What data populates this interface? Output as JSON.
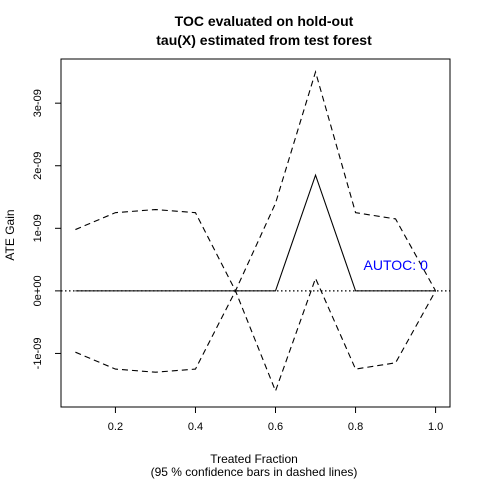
{
  "chart_data": {
    "type": "line",
    "title": [
      "TOC evaluated on hold-out",
      "tau(X) estimated from test forest"
    ],
    "xlabel": "Treated Fraction",
    "xlabel_sub": "(95 % confidence bars in dashed lines)",
    "ylabel": "ATE Gain",
    "xlim": [
      0.1,
      1.0
    ],
    "ylim": [
      -1.65e-09,
      3.5e-09
    ],
    "x_ticks": [
      0.2,
      0.4,
      0.6,
      0.8,
      1.0
    ],
    "x_tick_labels": [
      "0.2",
      "0.4",
      "0.6",
      "0.8",
      "1.0"
    ],
    "y_ticks": [
      -1e-09,
      0,
      1e-09,
      2e-09,
      3e-09
    ],
    "y_tick_labels": [
      "-1e-09",
      "0e+00",
      "1e-09",
      "2e-09",
      "3e-09"
    ],
    "x": [
      0.1,
      0.2,
      0.3,
      0.4,
      0.5,
      0.6,
      0.7,
      0.8,
      0.9,
      1.0
    ],
    "series": [
      {
        "style": "solid",
        "values": [
          0,
          0,
          0,
          0,
          0,
          0,
          1.85e-09,
          0,
          0,
          0
        ]
      },
      {
        "style": "dashed",
        "values": [
          9.8e-10,
          1.25e-09,
          1.3e-09,
          1.25e-09,
          0,
          1.4e-09,
          3.5e-09,
          1.25e-09,
          1.15e-09,
          0
        ]
      },
      {
        "style": "dashed",
        "values": [
          -9.8e-10,
          -1.25e-09,
          -1.3e-09,
          -1.25e-09,
          0,
          -1.6e-09,
          2e-10,
          -1.25e-09,
          -1.15e-09,
          0
        ]
      }
    ],
    "reference_line": {
      "y": 0,
      "style": "dotted"
    },
    "annotation": {
      "text": "AUTOC: 0",
      "x": 0.82,
      "y": 3.3e-10,
      "color": "#0000ff"
    },
    "grid": false
  }
}
